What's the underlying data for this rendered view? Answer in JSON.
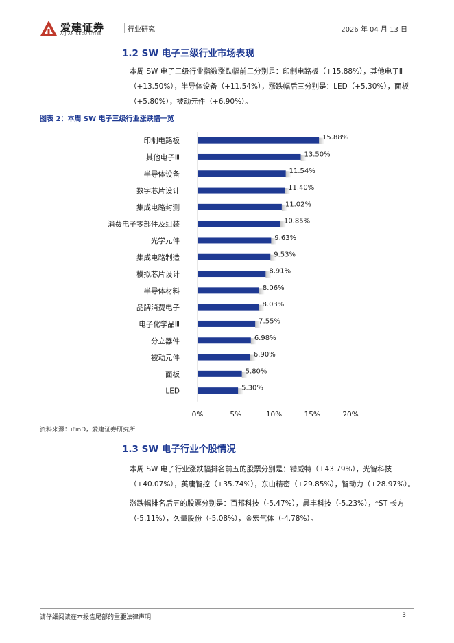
{
  "header": {
    "brand_cn": "爱建证券",
    "brand_en": "AIJIAN SECURITIES",
    "category": "行业研究",
    "date": "2026 年 04 月 13 日",
    "brand_color": "#c0392b"
  },
  "section1": {
    "title": "1.2 SW 电子三级行业市场表现",
    "paragraph": "本周 SW 电子三级行业指数涨跌幅前三分别是：印制电路板（+15.88%），其他电子Ⅲ（+13.50%），半导体设备（+11.54%），涨跌幅后三分别是：LED（+5.30%），面板（+5.80%），被动元件（+6.90%）。"
  },
  "figure": {
    "title": "图表 2：本周 SW 电子三级行业涨跌幅一览",
    "source": "资料来源：iFinD，爱建证券研究所"
  },
  "chart_data": {
    "type": "bar",
    "orientation": "horizontal",
    "categories": [
      "印制电路板",
      "其他电子Ⅲ",
      "半导体设备",
      "数字芯片设计",
      "集成电路封测",
      "消费电子零部件及组装",
      "光学元件",
      "集成电路制造",
      "模拟芯片设计",
      "半导体材料",
      "品牌消费电子",
      "电子化学品Ⅲ",
      "分立器件",
      "被动元件",
      "面板",
      "LED"
    ],
    "values": [
      15.88,
      13.5,
      11.54,
      11.4,
      11.02,
      10.85,
      9.63,
      9.53,
      8.91,
      8.06,
      8.03,
      7.55,
      6.98,
      6.9,
      5.8,
      5.3
    ],
    "value_labels": [
      "15.88%",
      "13.50%",
      "11.54%",
      "11.40%",
      "11.02%",
      "10.85%",
      "9.63%",
      "9.53%",
      "8.91%",
      "8.06%",
      "8.03%",
      "7.55%",
      "6.98%",
      "6.90%",
      "5.80%",
      "5.30%"
    ],
    "xlim": [
      0,
      20
    ],
    "xticks": [
      "0%",
      "5%",
      "10%",
      "15%",
      "20%"
    ],
    "bar_color": "#1f3a93",
    "grid": false,
    "legend": "none"
  },
  "section2": {
    "title": "1.3 SW 电子行业个股情况",
    "paragraph1": "本周 SW 电子行业涨跌幅排名前五的股票分别是：错威特（+43.79%），光智科技（+40.07%），英唐智控（+35.74%），东山精密（+29.85%），智动力（+28.97%）。",
    "paragraph2": "涨跌幅排名后五的股票分别是：百邦科技（-5.47%），晨丰科技（-5.23%），*ST 长方（-5.11%），久量股份（-5.08%），金宏气体（-4.78%）。"
  },
  "footer": {
    "disclaimer": "请仔细阅读在本报告尾部的重要法律声明",
    "page_number": "3"
  }
}
